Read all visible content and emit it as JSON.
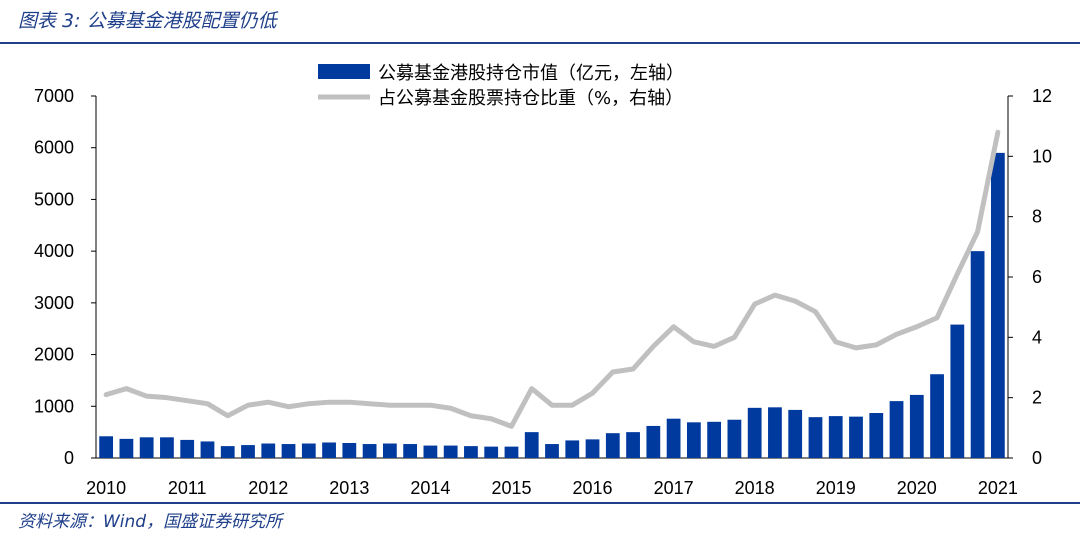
{
  "figure": {
    "title": "图表 3:  公募基金港股配置仍低",
    "source": "资料来源：Wind，国盛证券研究所"
  },
  "colors": {
    "bar": "#003a9e",
    "line": "#c0c0c0",
    "brand": "#1f3f8a"
  },
  "chart_data": {
    "type": "bar+line",
    "title": "",
    "x_tick_labels": [
      "2010",
      "2011",
      "2012",
      "2013",
      "2014",
      "2015",
      "2016",
      "2017",
      "2018",
      "2019",
      "2020",
      "2021"
    ],
    "left_axis": {
      "ylim": [
        0,
        7000
      ],
      "ticks": [
        0,
        1000,
        2000,
        3000,
        4000,
        5000,
        6000,
        7000
      ]
    },
    "right_axis": {
      "ylim": [
        0,
        12
      ],
      "ticks": [
        0,
        2,
        4,
        6,
        8,
        10,
        12
      ]
    },
    "legend": [
      "公募基金港股持仓市值（亿元，左轴）",
      "占公募基金股票持仓比重（%，右轴）"
    ],
    "series": [
      {
        "name": "公募基金港股持仓市值（亿元，左轴）",
        "type": "bar",
        "axis": "left",
        "values": [
          420,
          370,
          400,
          400,
          350,
          320,
          230,
          250,
          280,
          270,
          280,
          300,
          290,
          270,
          280,
          270,
          240,
          240,
          230,
          220,
          220,
          500,
          270,
          340,
          360,
          480,
          500,
          620,
          760,
          690,
          700,
          740,
          970,
          980,
          930,
          790,
          810,
          800,
          870,
          1100,
          1220,
          1620,
          2580,
          4000,
          5900
        ]
      },
      {
        "name": "占公募基金股票持仓比重（%，右轴）",
        "type": "line",
        "axis": "right",
        "values": [
          2.1,
          2.3,
          2.05,
          2.0,
          1.9,
          1.8,
          1.4,
          1.75,
          1.85,
          1.7,
          1.8,
          1.85,
          1.85,
          1.8,
          1.75,
          1.75,
          1.75,
          1.65,
          1.4,
          1.3,
          1.05,
          2.3,
          1.75,
          1.75,
          2.15,
          2.85,
          2.95,
          3.7,
          4.35,
          3.85,
          3.7,
          4.0,
          5.1,
          5.4,
          5.2,
          4.85,
          3.85,
          3.65,
          3.75,
          4.1,
          4.35,
          4.65,
          6.1,
          7.5,
          10.8
        ]
      }
    ]
  }
}
